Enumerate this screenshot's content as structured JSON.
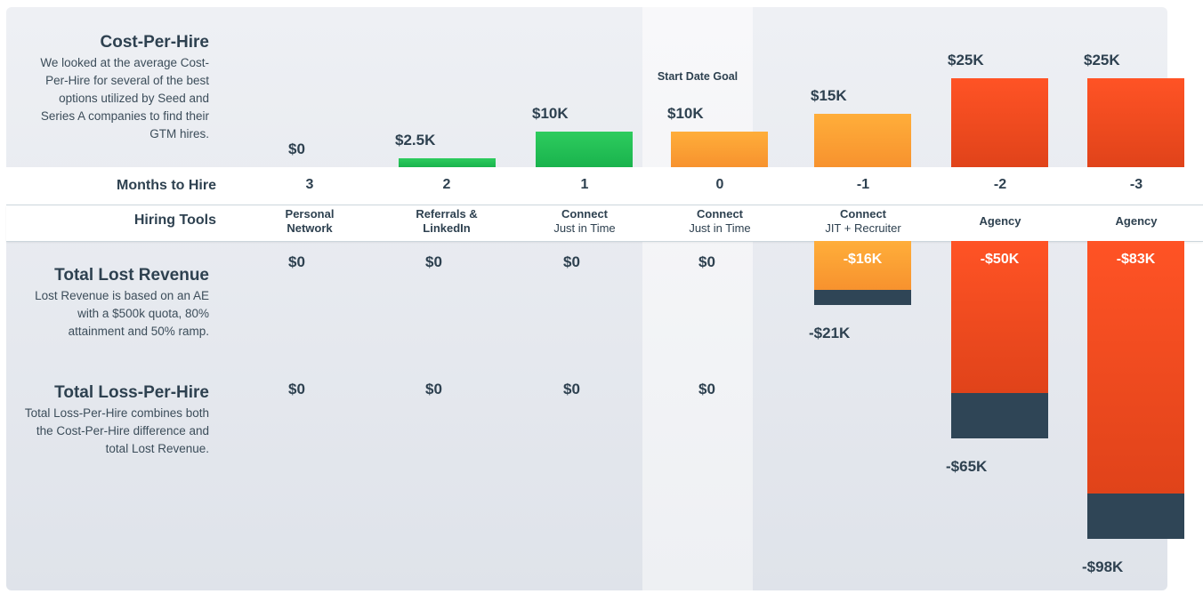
{
  "chart_data": {
    "type": "bar",
    "categories_months": [
      "3",
      "2",
      "1",
      "0",
      "-1",
      "-2",
      "-3"
    ],
    "row_labels": {
      "months": "Months to Hire",
      "tools": "Hiring Tools"
    },
    "tools": [
      {
        "line1": "Personal",
        "line2": "Network",
        "line2_bold": true
      },
      {
        "line1": "Referrals &",
        "line2": "LinkedIn",
        "line2_bold": true
      },
      {
        "line1": "Connect",
        "line2": "Just in Time",
        "line2_bold": false
      },
      {
        "line1": "Connect",
        "line2": "Just in Time",
        "line2_bold": false
      },
      {
        "line1": "Connect",
        "line2": "JIT + Recruiter",
        "line2_bold": false
      },
      {
        "line1": "Agency",
        "line2": "",
        "line2_bold": false
      },
      {
        "line1": "Agency",
        "line2": "",
        "line2_bold": false
      }
    ],
    "start_date_goal_label": "Start Date Goal",
    "cost_per_hire": {
      "title": "Cost-Per-Hire",
      "description": "We looked at the average Cost-Per-Hire for several of the best options utilized by Seed and Series A companies to find their GTM hires.",
      "values": [
        0,
        2.5,
        10,
        10,
        15,
        25,
        25
      ],
      "labels": [
        "$0",
        "$2.5K",
        "$10K",
        "$10K",
        "$15K",
        "$25K",
        "$25K"
      ],
      "unit": "K"
    },
    "total_lost_revenue": {
      "title": "Total Lost Revenue",
      "description": "Lost Revenue is based on an AE with a $500k quota, 80% attainment and 50% ramp.",
      "values": [
        0,
        0,
        0,
        0,
        -16,
        -50,
        -83
      ],
      "labels": [
        "$0",
        "$0",
        "$0",
        "$0",
        "-$16K",
        "-$50K",
        "-$83K"
      ]
    },
    "total_loss_per_hire": {
      "title": "Total Loss-Per-Hire",
      "description": "Total Loss-Per-Hire combines both the Cost-Per-Hire difference and total Lost Revenue.",
      "values": [
        0,
        0,
        0,
        0,
        -21,
        -65,
        -98
      ],
      "labels": [
        "$0",
        "$0",
        "$0",
        "$0",
        "-$21K",
        "-$65K",
        "-$98K"
      ]
    },
    "colors": {
      "green_top": "#2ecc5e",
      "green_bottom": "#19b34d",
      "orange_top": "#ffae3a",
      "orange_bottom": "#f7922e",
      "red_top": "#ff5325",
      "red_bottom": "#e0431a",
      "dark": "#2f4556"
    }
  }
}
